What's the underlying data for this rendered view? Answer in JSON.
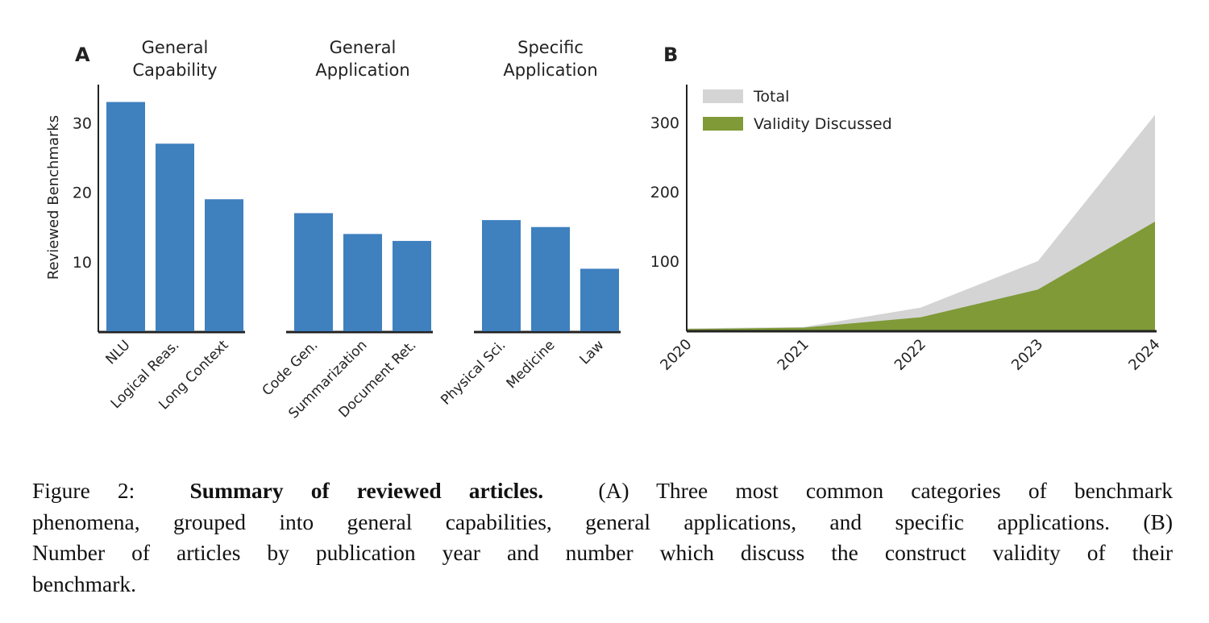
{
  "chart_data": [
    {
      "panel": "A",
      "type": "bar",
      "ylabel": "Reviewed Benchmarks",
      "yticks": [
        10,
        20,
        30
      ],
      "ylim": [
        0,
        35
      ],
      "color": "#3f80bf",
      "groups": [
        {
          "title": [
            "General",
            "Capability"
          ],
          "categories": [
            "NLU",
            "Logical Reas.",
            "Long Context"
          ],
          "values": [
            33,
            27,
            19
          ]
        },
        {
          "title": [
            "General",
            "Application"
          ],
          "categories": [
            "Code Gen.",
            "Summarization",
            "Document Ret."
          ],
          "values": [
            17,
            14,
            13
          ]
        },
        {
          "title": [
            "Specific",
            "Application"
          ],
          "categories": [
            "Physical Sci.",
            "Medicine",
            "Law"
          ],
          "values": [
            16,
            15,
            9
          ]
        }
      ]
    },
    {
      "panel": "B",
      "type": "area",
      "x": [
        "2020",
        "2021",
        "2022",
        "2023",
        "2024"
      ],
      "yticks": [
        100,
        200,
        300
      ],
      "ylim": [
        0,
        355
      ],
      "legend_position": "top-left",
      "series": [
        {
          "name": "Total",
          "values": [
            3,
            5,
            33,
            100,
            311
          ],
          "color": "#d4d4d4"
        },
        {
          "name": "Validity Discussed",
          "values": [
            2,
            4,
            19,
            59,
            157
          ],
          "color": "#7f9a37"
        }
      ]
    }
  ],
  "caption": {
    "label": "Figure 2:",
    "title": "Summary of reviewed articles.",
    "lines": [
      "(A) Three most common categories of benchmark",
      "phenomena, grouped into general capabilities, general applications, and specific applications. (B)",
      "Number of articles by publication year and number which discuss the construct validity of their",
      "benchmark."
    ]
  }
}
